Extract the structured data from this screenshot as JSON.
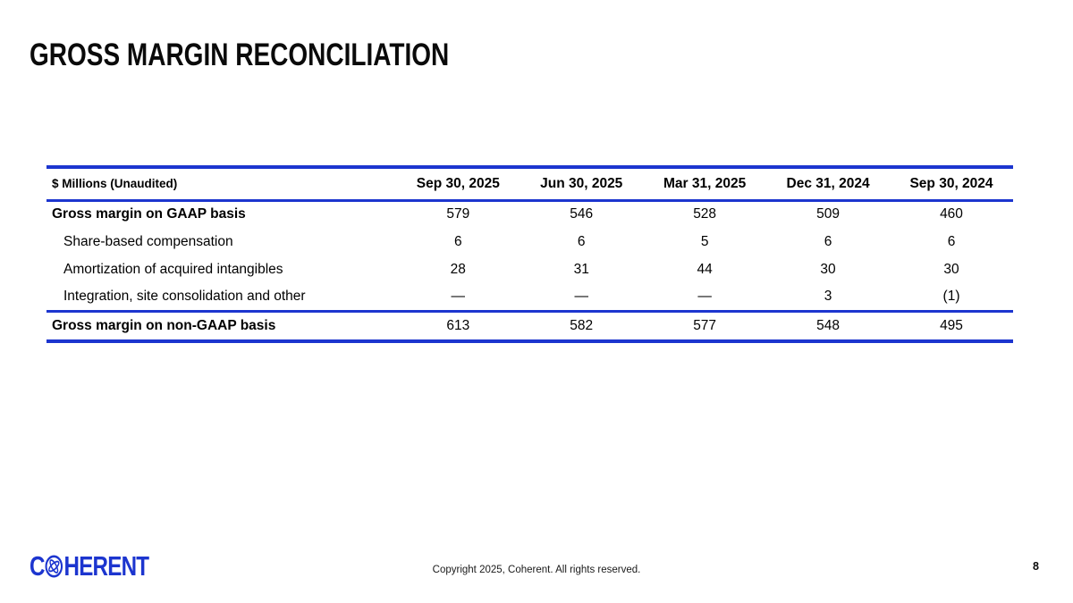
{
  "slide": {
    "title": "GROSS MARGIN RECONCILIATION",
    "page_number": "8",
    "footer_copyright": "Copyright 2025, Coherent. All rights reserved."
  },
  "logo": {
    "prefix": "C",
    "suffix": "HERENT",
    "icon": "atom-orbit-icon"
  },
  "colors": {
    "brand_blue": "#1c35cf",
    "title_black": "#0a0a0a"
  },
  "table": {
    "unit_label": "$ Millions (Unaudited)",
    "columns": [
      "Sep 30, 2025",
      "Jun 30, 2025",
      "Mar 31, 2025",
      "Dec 31, 2024",
      "Sep 30, 2024"
    ],
    "rows": [
      {
        "label": "Gross margin on GAAP basis",
        "bold": true,
        "indent": false,
        "values": [
          "579",
          "546",
          "528",
          "509",
          "460"
        ]
      },
      {
        "label": "Share-based compensation",
        "bold": false,
        "indent": true,
        "values": [
          "6",
          "6",
          "5",
          "6",
          "6"
        ]
      },
      {
        "label": "Amortization of acquired intangibles",
        "bold": false,
        "indent": true,
        "values": [
          "28",
          "31",
          "44",
          "30",
          "30"
        ]
      },
      {
        "label": "Integration, site consolidation and other",
        "bold": false,
        "indent": true,
        "values": [
          "—",
          "—",
          "—",
          "3",
          "(1)"
        ]
      },
      {
        "label": "Gross margin on non-GAAP basis",
        "bold": true,
        "indent": false,
        "values": [
          "613",
          "582",
          "577",
          "548",
          "495"
        ]
      }
    ]
  }
}
